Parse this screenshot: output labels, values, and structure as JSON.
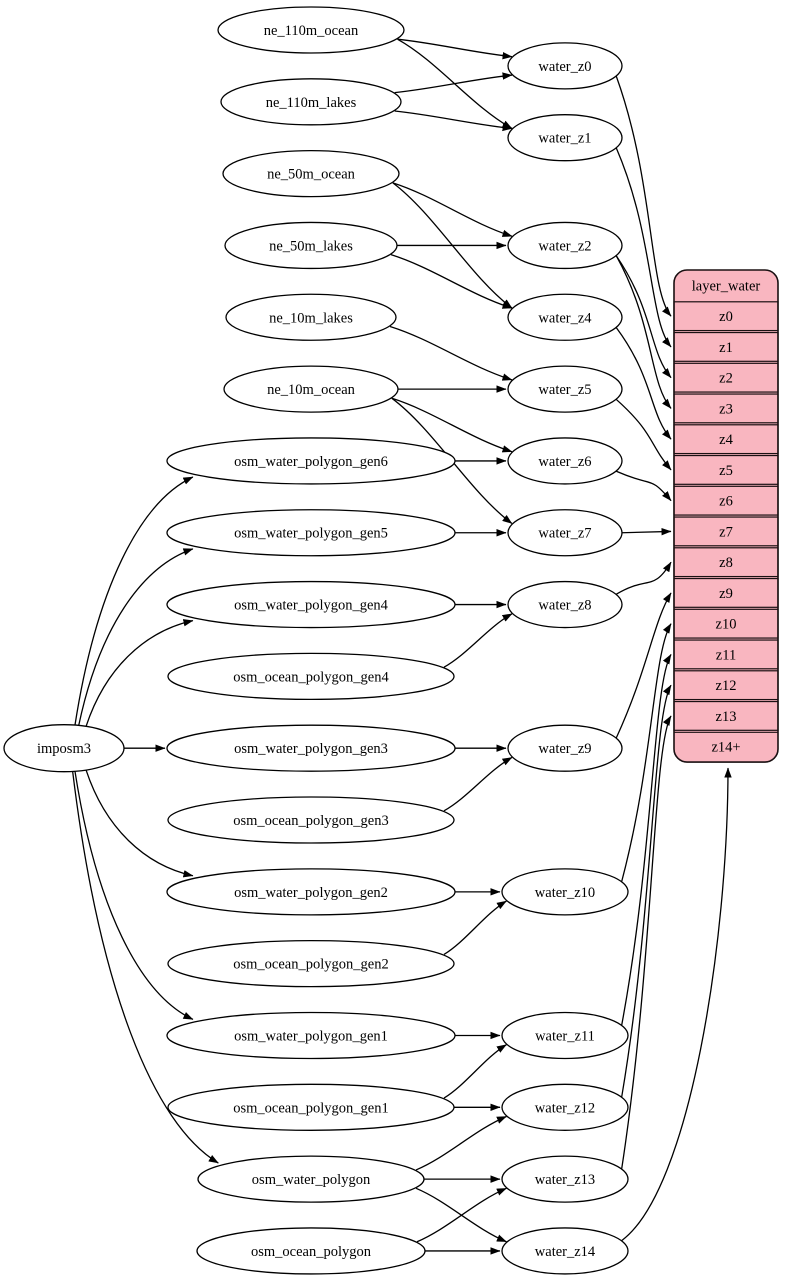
{
  "diagram": {
    "background": "#ffffff",
    "ellipse_fill": "#ffffff",
    "ellipse_stroke": "#000000",
    "edge_color": "#000000",
    "record_fill": "#f9b6c0",
    "record_stroke": "#1a1012"
  },
  "nodes": [
    {
      "id": "imposm3",
      "label": "imposm3"
    },
    {
      "id": "ne_110m_ocean",
      "label": "ne_110m_ocean"
    },
    {
      "id": "ne_110m_lakes",
      "label": "ne_110m_lakes"
    },
    {
      "id": "ne_50m_ocean",
      "label": "ne_50m_ocean"
    },
    {
      "id": "ne_50m_lakes",
      "label": "ne_50m_lakes"
    },
    {
      "id": "ne_10m_lakes",
      "label": "ne_10m_lakes"
    },
    {
      "id": "ne_10m_ocean",
      "label": "ne_10m_ocean"
    },
    {
      "id": "osm_water_polygon_gen6",
      "label": "osm_water_polygon_gen6"
    },
    {
      "id": "osm_water_polygon_gen5",
      "label": "osm_water_polygon_gen5"
    },
    {
      "id": "osm_water_polygon_gen4",
      "label": "osm_water_polygon_gen4"
    },
    {
      "id": "osm_ocean_polygon_gen4",
      "label": "osm_ocean_polygon_gen4"
    },
    {
      "id": "osm_water_polygon_gen3",
      "label": "osm_water_polygon_gen3"
    },
    {
      "id": "osm_ocean_polygon_gen3",
      "label": "osm_ocean_polygon_gen3"
    },
    {
      "id": "osm_water_polygon_gen2",
      "label": "osm_water_polygon_gen2"
    },
    {
      "id": "osm_ocean_polygon_gen2",
      "label": "osm_ocean_polygon_gen2"
    },
    {
      "id": "osm_water_polygon_gen1",
      "label": "osm_water_polygon_gen1"
    },
    {
      "id": "osm_ocean_polygon_gen1",
      "label": "osm_ocean_polygon_gen1"
    },
    {
      "id": "osm_water_polygon",
      "label": "osm_water_polygon"
    },
    {
      "id": "osm_ocean_polygon",
      "label": "osm_ocean_polygon"
    },
    {
      "id": "water_z0",
      "label": "water_z0"
    },
    {
      "id": "water_z1",
      "label": "water_z1"
    },
    {
      "id": "water_z2",
      "label": "water_z2"
    },
    {
      "id": "water_z4",
      "label": "water_z4"
    },
    {
      "id": "water_z5",
      "label": "water_z5"
    },
    {
      "id": "water_z6",
      "label": "water_z6"
    },
    {
      "id": "water_z7",
      "label": "water_z7"
    },
    {
      "id": "water_z8",
      "label": "water_z8"
    },
    {
      "id": "water_z9",
      "label": "water_z9"
    },
    {
      "id": "water_z10",
      "label": "water_z10"
    },
    {
      "id": "water_z11",
      "label": "water_z11"
    },
    {
      "id": "water_z12",
      "label": "water_z12"
    },
    {
      "id": "water_z13",
      "label": "water_z13"
    },
    {
      "id": "water_z14",
      "label": "water_z14"
    }
  ],
  "record": {
    "id": "layer_water",
    "title": "layer_water",
    "rows": [
      "z0",
      "z1",
      "z2",
      "z3",
      "z4",
      "z5",
      "z6",
      "z7",
      "z8",
      "z9",
      "z10",
      "z11",
      "z12",
      "z13",
      "z14+"
    ]
  },
  "edges": [
    [
      "imposm3",
      "osm_water_polygon_gen6"
    ],
    [
      "imposm3",
      "osm_water_polygon_gen5"
    ],
    [
      "imposm3",
      "osm_water_polygon_gen4"
    ],
    [
      "imposm3",
      "osm_water_polygon_gen3"
    ],
    [
      "imposm3",
      "osm_water_polygon_gen2"
    ],
    [
      "imposm3",
      "osm_water_polygon_gen1"
    ],
    [
      "imposm3",
      "osm_water_polygon"
    ],
    [
      "ne_110m_ocean",
      "water_z0"
    ],
    [
      "ne_110m_ocean",
      "water_z1"
    ],
    [
      "ne_110m_lakes",
      "water_z0"
    ],
    [
      "ne_110m_lakes",
      "water_z1"
    ],
    [
      "ne_50m_ocean",
      "water_z2"
    ],
    [
      "ne_50m_ocean",
      "water_z4"
    ],
    [
      "ne_50m_lakes",
      "water_z2"
    ],
    [
      "ne_50m_lakes",
      "water_z4"
    ],
    [
      "ne_10m_lakes",
      "water_z5"
    ],
    [
      "ne_10m_ocean",
      "water_z5"
    ],
    [
      "ne_10m_ocean",
      "water_z6"
    ],
    [
      "ne_10m_ocean",
      "water_z7"
    ],
    [
      "osm_water_polygon_gen6",
      "water_z6"
    ],
    [
      "osm_water_polygon_gen5",
      "water_z7"
    ],
    [
      "osm_water_polygon_gen4",
      "water_z8"
    ],
    [
      "osm_ocean_polygon_gen4",
      "water_z8"
    ],
    [
      "osm_water_polygon_gen3",
      "water_z9"
    ],
    [
      "osm_ocean_polygon_gen3",
      "water_z9"
    ],
    [
      "osm_water_polygon_gen2",
      "water_z10"
    ],
    [
      "osm_ocean_polygon_gen2",
      "water_z10"
    ],
    [
      "osm_water_polygon_gen1",
      "water_z11"
    ],
    [
      "osm_ocean_polygon_gen1",
      "water_z11"
    ],
    [
      "osm_ocean_polygon_gen1",
      "water_z12"
    ],
    [
      "osm_water_polygon",
      "water_z12"
    ],
    [
      "osm_water_polygon",
      "water_z13"
    ],
    [
      "osm_water_polygon",
      "water_z14"
    ],
    [
      "osm_ocean_polygon",
      "water_z13"
    ],
    [
      "osm_ocean_polygon",
      "water_z14"
    ],
    [
      "water_z0",
      "layer_water.z0"
    ],
    [
      "water_z1",
      "layer_water.z1"
    ],
    [
      "water_z2",
      "layer_water.z2"
    ],
    [
      "water_z2",
      "layer_water.z3"
    ],
    [
      "water_z4",
      "layer_water.z4"
    ],
    [
      "water_z5",
      "layer_water.z5"
    ],
    [
      "water_z6",
      "layer_water.z6"
    ],
    [
      "water_z7",
      "layer_water.z7"
    ],
    [
      "water_z8",
      "layer_water.z8"
    ],
    [
      "water_z9",
      "layer_water.z9"
    ],
    [
      "water_z10",
      "layer_water.z10"
    ],
    [
      "water_z11",
      "layer_water.z11"
    ],
    [
      "water_z12",
      "layer_water.z12"
    ],
    [
      "water_z13",
      "layer_water.z13"
    ],
    [
      "water_z14",
      "layer_water.z14+"
    ]
  ]
}
